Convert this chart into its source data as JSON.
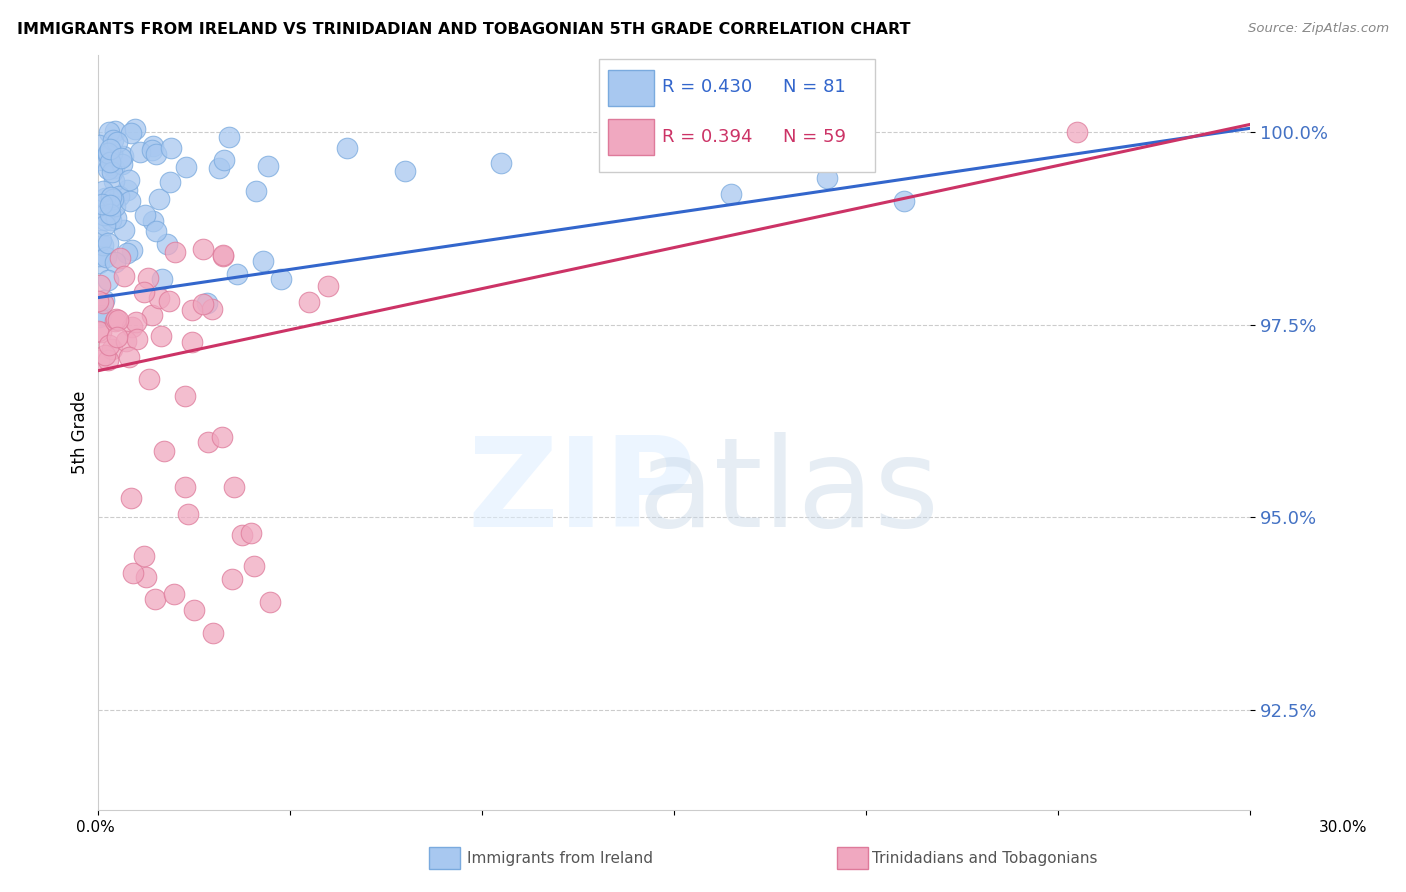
{
  "title": "IMMIGRANTS FROM IRELAND VS TRINIDADIAN AND TOBAGONIAN 5TH GRADE CORRELATION CHART",
  "source": "Source: ZipAtlas.com",
  "ylabel": "5th Grade",
  "ytick_values": [
    100.0,
    97.5,
    95.0,
    92.5
  ],
  "xlim": [
    0.0,
    30.0
  ],
  "ylim": [
    91.2,
    101.0
  ],
  "blue_color": "#a8c8f0",
  "pink_color": "#f0a8c0",
  "blue_line_color": "#3366cc",
  "pink_line_color": "#cc3366",
  "blue_edge_color": "#7aaade",
  "pink_edge_color": "#de7a9a",
  "legend_entries": [
    {
      "r": "R = 0.430",
      "n": "N = 81",
      "color": "#3366cc",
      "bg": "#c8dcf8"
    },
    {
      "r": "R = 0.394",
      "n": "N = 59",
      "color": "#cc3366",
      "bg": "#f8c8d8"
    }
  ],
  "blue_line_x0": 0.0,
  "blue_line_y0": 97.85,
  "blue_line_x1": 30.0,
  "blue_line_y1": 100.05,
  "pink_line_x0": 0.0,
  "pink_line_y0": 96.9,
  "pink_line_x1": 30.0,
  "pink_line_y1": 100.1
}
